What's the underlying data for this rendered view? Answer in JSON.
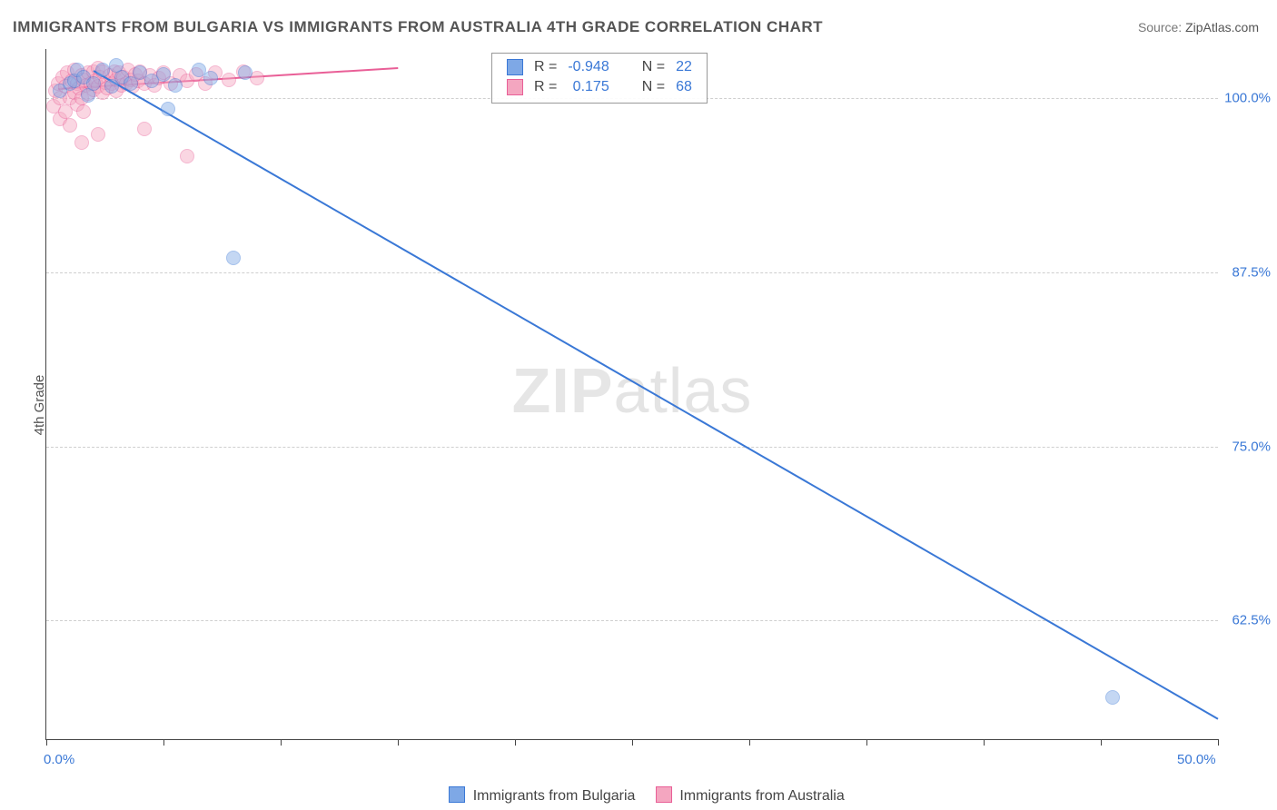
{
  "title": "IMMIGRANTS FROM BULGARIA VS IMMIGRANTS FROM AUSTRALIA 4TH GRADE CORRELATION CHART",
  "source_label": "Source:",
  "source_value": "ZipAtlas.com",
  "y_axis_label": "4th Grade",
  "watermark_a": "ZIP",
  "watermark_b": "atlas",
  "chart": {
    "type": "scatter",
    "background_color": "#ffffff",
    "grid_color": "#cfcfcf",
    "axis_color": "#444444",
    "label_color": "#3a78d6",
    "label_fontsize": 15,
    "xlim": [
      0.0,
      50.0
    ],
    "ylim": [
      54.0,
      103.5
    ],
    "y_ticks": [
      62.5,
      75.0,
      87.5,
      100.0
    ],
    "y_tick_labels": [
      "62.5%",
      "75.0%",
      "87.5%",
      "100.0%"
    ],
    "x_minor_ticks": [
      0,
      5,
      10,
      15,
      20,
      25,
      30,
      35,
      40,
      45,
      50
    ],
    "x_left_label": "0.0%",
    "x_right_label": "50.0%",
    "marker_radius": 8,
    "marker_opacity": 0.45,
    "line_width": 2,
    "series": [
      {
        "name": "Immigrants from Bulgaria",
        "color_fill": "#7ea8e6",
        "color_stroke": "#3a78d6",
        "R": "-0.948",
        "N": "22",
        "trend": {
          "x1": 2.0,
          "y1": 102.0,
          "x2": 50.0,
          "y2": 55.5
        },
        "points": [
          [
            0.6,
            100.5
          ],
          [
            1.0,
            101.0
          ],
          [
            1.2,
            101.2
          ],
          [
            1.3,
            102.0
          ],
          [
            1.6,
            101.5
          ],
          [
            1.8,
            100.2
          ],
          [
            2.0,
            101.0
          ],
          [
            2.4,
            102.0
          ],
          [
            2.8,
            100.8
          ],
          [
            3.2,
            101.5
          ],
          [
            3.6,
            101.0
          ],
          [
            4.0,
            101.8
          ],
          [
            3.0,
            102.3
          ],
          [
            4.5,
            101.2
          ],
          [
            5.0,
            101.7
          ],
          [
            5.5,
            100.9
          ],
          [
            6.5,
            102.0
          ],
          [
            7.0,
            101.4
          ],
          [
            8.5,
            101.8
          ],
          [
            5.2,
            99.2
          ],
          [
            8.0,
            88.5
          ],
          [
            45.5,
            57.0
          ]
        ]
      },
      {
        "name": "Immigrants from Australia",
        "color_fill": "#f4a6c0",
        "color_stroke": "#e95f97",
        "R": "0.175",
        "N": "68",
        "trend": {
          "x1": 0.5,
          "y1": 100.7,
          "x2": 15.0,
          "y2": 102.2
        },
        "points": [
          [
            0.3,
            99.4
          ],
          [
            0.4,
            100.5
          ],
          [
            0.5,
            101.0
          ],
          [
            0.6,
            98.5
          ],
          [
            0.6,
            100.0
          ],
          [
            0.7,
            101.5
          ],
          [
            0.8,
            99.0
          ],
          [
            0.8,
            100.8
          ],
          [
            0.9,
            101.8
          ],
          [
            1.0,
            100.0
          ],
          [
            1.0,
            98.0
          ],
          [
            1.1,
            101.2
          ],
          [
            1.2,
            100.4
          ],
          [
            1.2,
            102.0
          ],
          [
            1.3,
            101.0
          ],
          [
            1.3,
            99.5
          ],
          [
            1.4,
            100.7
          ],
          [
            1.5,
            101.6
          ],
          [
            1.5,
            100.0
          ],
          [
            1.6,
            101.3
          ],
          [
            1.6,
            99.0
          ],
          [
            1.7,
            100.9
          ],
          [
            1.8,
            101.8
          ],
          [
            1.8,
            100.3
          ],
          [
            1.9,
            101.0
          ],
          [
            2.0,
            100.6
          ],
          [
            2.0,
            101.9
          ],
          [
            2.1,
            101.2
          ],
          [
            2.2,
            100.8
          ],
          [
            2.2,
            102.1
          ],
          [
            2.3,
            101.5
          ],
          [
            2.4,
            100.4
          ],
          [
            2.4,
            101.9
          ],
          [
            2.5,
            101.1
          ],
          [
            2.6,
            100.7
          ],
          [
            2.7,
            101.6
          ],
          [
            2.8,
            101.0
          ],
          [
            2.9,
            101.9
          ],
          [
            3.0,
            101.3
          ],
          [
            3.0,
            100.5
          ],
          [
            3.1,
            101.8
          ],
          [
            3.2,
            100.9
          ],
          [
            3.3,
            101.5
          ],
          [
            3.4,
            101.0
          ],
          [
            3.5,
            102.0
          ],
          [
            3.6,
            101.3
          ],
          [
            3.7,
            100.8
          ],
          [
            3.8,
            101.7
          ],
          [
            3.9,
            101.2
          ],
          [
            4.0,
            101.9
          ],
          [
            4.2,
            101.0
          ],
          [
            4.4,
            101.6
          ],
          [
            4.6,
            100.9
          ],
          [
            4.8,
            101.4
          ],
          [
            5.0,
            101.8
          ],
          [
            5.3,
            101.0
          ],
          [
            5.7,
            101.6
          ],
          [
            6.0,
            101.2
          ],
          [
            6.4,
            101.7
          ],
          [
            6.8,
            101.0
          ],
          [
            7.2,
            101.8
          ],
          [
            7.8,
            101.3
          ],
          [
            8.4,
            101.9
          ],
          [
            9.0,
            101.4
          ],
          [
            4.2,
            97.8
          ],
          [
            6.0,
            95.8
          ],
          [
            1.5,
            96.8
          ],
          [
            2.2,
            97.4
          ]
        ]
      }
    ]
  },
  "legend_R_label": "R =",
  "legend_N_label": "N ="
}
